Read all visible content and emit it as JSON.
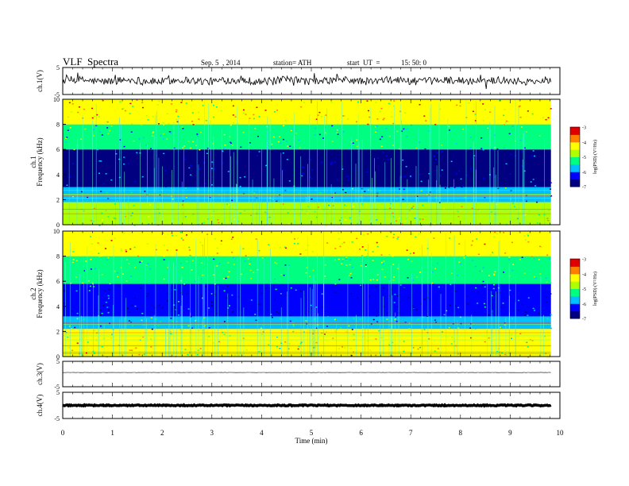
{
  "header": {
    "title": "VLF  Spectra",
    "date": "Sep. 5  , 2014",
    "station": "station= ATH",
    "start_label": "start  UT  =",
    "start_time": "15: 50: 0"
  },
  "chart_data": {
    "type": "heatmap",
    "x_axis": {
      "label": "Time  (min)",
      "range": [
        0,
        10
      ],
      "ticks": [
        0,
        1,
        2,
        3,
        4,
        5,
        6,
        7,
        8,
        9,
        10
      ],
      "data_end": 9.82
    },
    "panels": [
      {
        "id": "ch1_wave",
        "type": "line",
        "ylabel": "ch.1(V)",
        "ylim": [
          -5,
          5
        ],
        "ytick_labels": [
          "5",
          "-5"
        ],
        "baseline": 0.1,
        "amplitude": 1.4,
        "style": "noisy"
      },
      {
        "id": "ch1_spec",
        "type": "heatmap",
        "ylabel_channel": "ch.1",
        "ylabel": "Frequency  (kHz)",
        "ylim": [
          0,
          10
        ],
        "ytick_labels": [
          "0",
          "2",
          "4",
          "6",
          "8",
          "10"
        ],
        "bands_khz": [
          {
            "from": 0,
            "to": 1.8,
            "level": -4.6
          },
          {
            "from": 1.8,
            "to": 3.0,
            "level": -5.8
          },
          {
            "from": 3.0,
            "to": 6.0,
            "level": -6.6
          },
          {
            "from": 6.0,
            "to": 8.0,
            "level": -5.3
          },
          {
            "from": 8.0,
            "to": 10.0,
            "level": -4.2
          }
        ],
        "colorbar": {
          "label": "log(PSD) (V²/Hz)",
          "range": [
            -7,
            -3
          ],
          "ticks": [
            "-3",
            "-4",
            "-5",
            "-6",
            "-7"
          ]
        }
      },
      {
        "id": "ch2_spec",
        "type": "heatmap",
        "ylabel_channel": "ch.2",
        "ylabel": "Frequency  (kHz)",
        "ylim": [
          0,
          10
        ],
        "ytick_labels": [
          "0",
          "2",
          "4",
          "6",
          "8",
          "10"
        ],
        "bands_khz": [
          {
            "from": 0,
            "to": 2.2,
            "level": -4.5
          },
          {
            "from": 2.2,
            "to": 3.2,
            "level": -5.6
          },
          {
            "from": 3.2,
            "to": 5.8,
            "level": -6.4
          },
          {
            "from": 5.8,
            "to": 8.0,
            "level": -5.1
          },
          {
            "from": 8.0,
            "to": 10.0,
            "level": -4.3
          }
        ],
        "colorbar": {
          "label": "log(PSD) (V²/Hz)",
          "range": [
            -7,
            -3
          ],
          "ticks": [
            "-3",
            "-4",
            "-5",
            "-6",
            "-7"
          ]
        }
      },
      {
        "id": "ch3_wave",
        "type": "line",
        "ylabel": "ch.3(V)",
        "ylim": [
          -5,
          5
        ],
        "ytick_labels": [
          "5",
          "-5"
        ],
        "baseline": 0.6,
        "amplitude": 0.05,
        "style": "flat"
      },
      {
        "id": "ch4_wave",
        "type": "line",
        "ylabel": "ch.4(V)",
        "ylim": [
          -5,
          5
        ],
        "ytick_labels": [
          "5",
          "-5"
        ],
        "baseline": 0.0,
        "amplitude": 0.2,
        "style": "thick"
      }
    ],
    "colormap": [
      "#000080",
      "#0000ff",
      "#00c0ff",
      "#00ff80",
      "#b0ff00",
      "#ffff00",
      "#ff8000",
      "#e00000",
      "#ffffff"
    ],
    "legend": "right",
    "grid": false
  }
}
